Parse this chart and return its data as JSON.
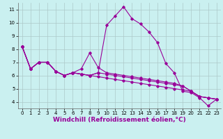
{
  "xlabel": "Windchill (Refroidissement éolien,°C)",
  "bg_color": "#caf0f0",
  "line_color": "#990099",
  "grid_color": "#adc8c8",
  "xlim": [
    -0.5,
    23.5
  ],
  "ylim": [
    3.5,
    11.5
  ],
  "xticks": [
    0,
    1,
    2,
    3,
    4,
    5,
    6,
    7,
    8,
    9,
    10,
    11,
    12,
    13,
    14,
    15,
    16,
    17,
    18,
    19,
    20,
    21,
    22,
    23
  ],
  "yticks": [
    4,
    5,
    6,
    7,
    8,
    9,
    10,
    11
  ],
  "series": [
    [
      8.2,
      6.5,
      7.0,
      7.0,
      6.3,
      6.0,
      6.2,
      6.1,
      6.0,
      6.2,
      9.8,
      10.5,
      11.2,
      10.3,
      9.9,
      9.3,
      8.5,
      6.9,
      6.2,
      4.8,
      4.7,
      4.3,
      3.7,
      4.2
    ],
    [
      8.2,
      6.5,
      7.0,
      7.0,
      6.3,
      6.0,
      6.2,
      6.5,
      7.7,
      6.6,
      6.2,
      6.1,
      6.0,
      5.9,
      5.8,
      5.7,
      5.6,
      5.5,
      5.4,
      5.2,
      4.8,
      4.4,
      4.3,
      4.2
    ],
    [
      8.2,
      6.5,
      7.0,
      7.0,
      6.3,
      6.0,
      6.2,
      6.1,
      6.0,
      6.2,
      6.1,
      6.0,
      5.9,
      5.8,
      5.7,
      5.6,
      5.5,
      5.4,
      5.3,
      5.2,
      4.8,
      4.4,
      4.3,
      4.2
    ],
    [
      8.2,
      6.5,
      7.0,
      7.0,
      6.3,
      6.0,
      6.2,
      6.1,
      6.0,
      5.9,
      5.8,
      5.7,
      5.6,
      5.5,
      5.4,
      5.3,
      5.2,
      5.1,
      5.0,
      4.9,
      4.8,
      4.4,
      4.3,
      4.2
    ]
  ],
  "marker": "D",
  "marker_size": 1.8,
  "line_width": 0.8,
  "tick_fontsize": 5,
  "label_fontsize": 6.5
}
